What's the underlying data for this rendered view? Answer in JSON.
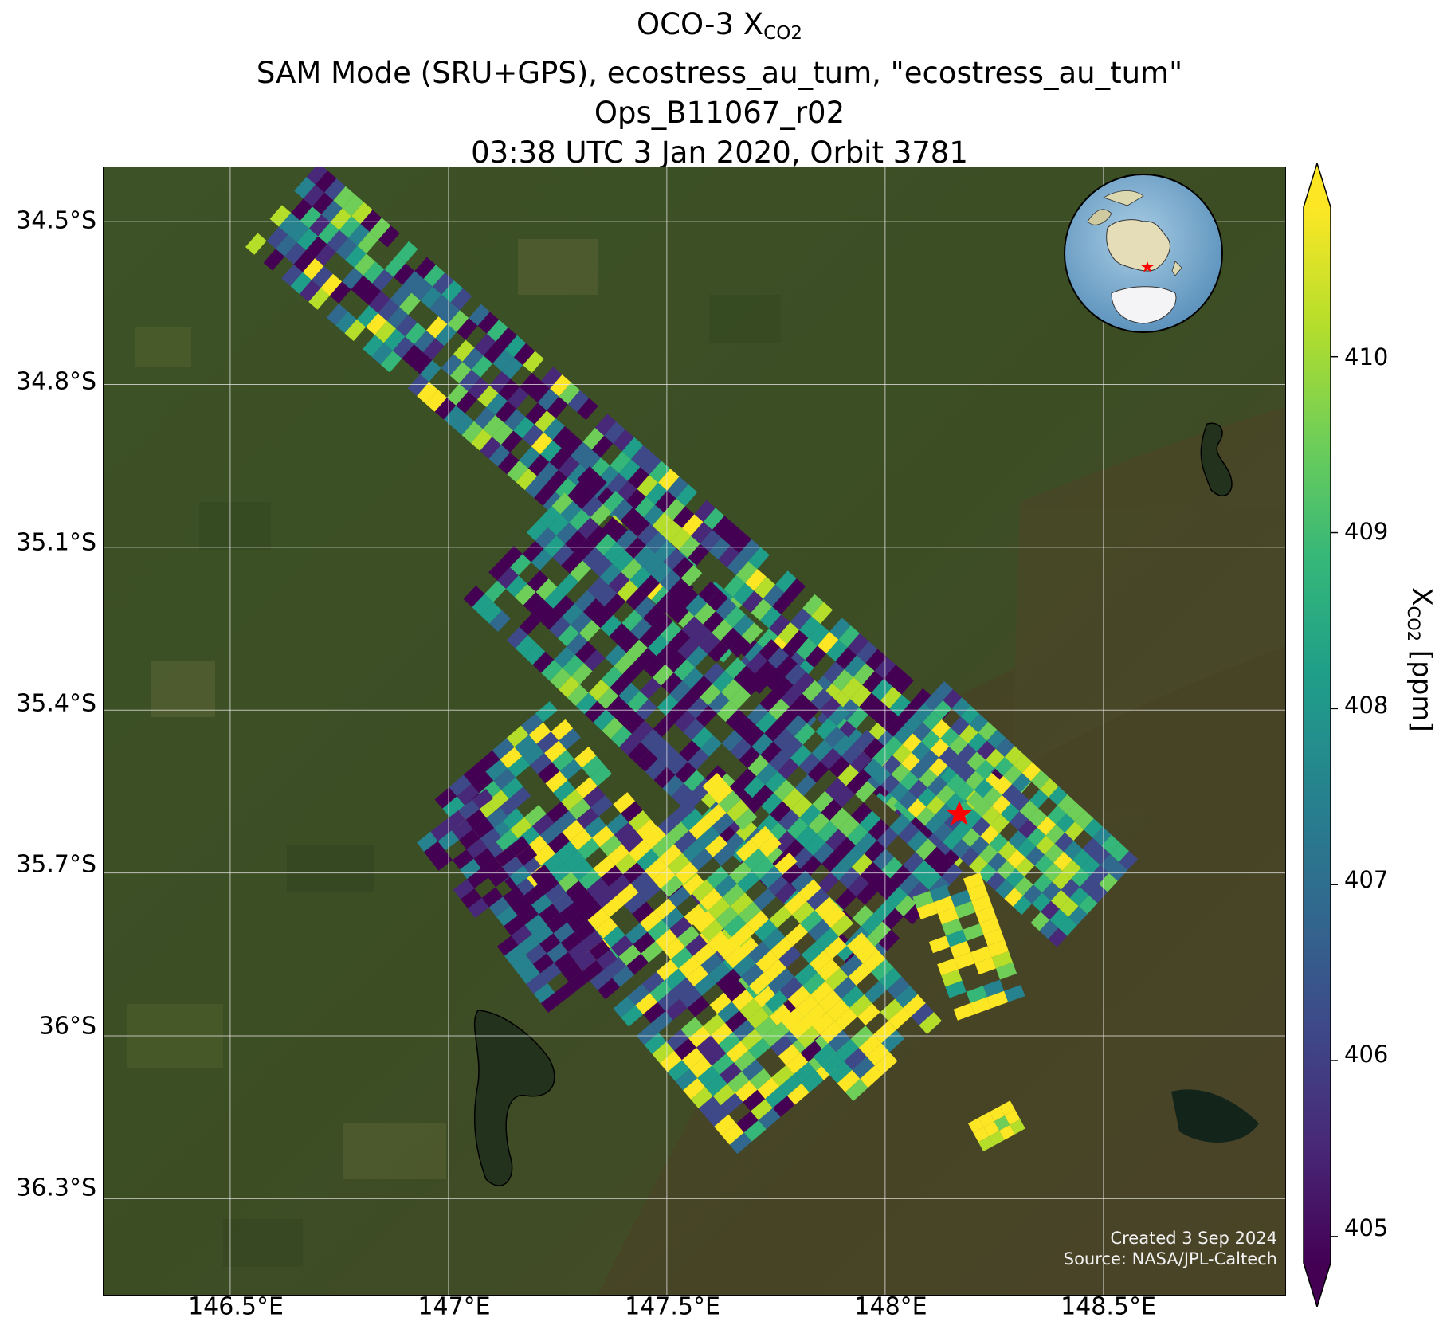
{
  "title": {
    "line1_main": "OCO-3 X",
    "line1_sub": "CO2",
    "line2": "SAM Mode (SRU+GPS), ecostress_au_tum, \"ecostress_au_tum\"",
    "line3": "Ops_B11067_r02",
    "line4": "03:38 UTC 3 Jan 2020, Orbit 3781"
  },
  "map": {
    "lat_labels": [
      "34.5°S",
      "34.8°S",
      "35.1°S",
      "35.4°S",
      "35.7°S",
      "36°S",
      "36.3°S"
    ],
    "lon_labels": [
      "146.5°E",
      "147°E",
      "147.5°E",
      "148°E",
      "148.5°E"
    ],
    "lon_range": [
      146.21,
      148.92
    ],
    "lat_range": [
      -36.48,
      -34.4
    ],
    "target_marker": "red-star",
    "inset_globe": "globe-locator-inset",
    "credit_line1": "Created 3 Sep 2024",
    "credit_line2": "Source: NASA/JPL-Caltech"
  },
  "colorbar": {
    "label_main": "X",
    "label_sub": "CO2",
    "label_unit": "[ppm]",
    "ticks": [
      "405",
      "406",
      "407",
      "408",
      "409",
      "410"
    ],
    "range": [
      404.85,
      410.85
    ],
    "colormap": "viridis",
    "extend": "both"
  },
  "colors": {
    "viridis": [
      "#440154",
      "#482878",
      "#3e4989",
      "#31688e",
      "#26828e",
      "#1f9e89",
      "#35b779",
      "#6ece58",
      "#b5de2b",
      "#fde725"
    ],
    "target": "#ff0000"
  }
}
